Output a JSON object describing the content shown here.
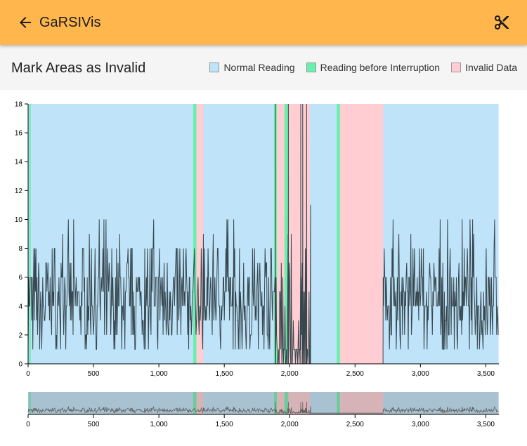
{
  "app": {
    "title": "GaRSIVis",
    "back_icon": "arrow-left-icon",
    "cut_icon": "scissors-icon",
    "accent_color": "#FFB74D"
  },
  "toolbar": {
    "title": "Mark Areas as Invalid"
  },
  "legend": [
    {
      "label": "Normal Reading",
      "color": "#BFE3F8"
    },
    {
      "label": "Reading before Interruption",
      "color": "#69F0AE"
    },
    {
      "label": "Invalid Data",
      "color": "#FFCDD2"
    }
  ],
  "chart_data": {
    "type": "line",
    "series_color": "#37474F",
    "xlim": [
      0,
      3600
    ],
    "ylim": [
      0,
      18
    ],
    "x_ticks": [
      0,
      500,
      1000,
      1500,
      2000,
      2500,
      3000,
      3500
    ],
    "y_ticks": [
      0,
      2,
      4,
      6,
      8,
      10,
      12,
      14,
      16,
      18
    ],
    "x_tick_labels": [
      "0",
      "500",
      "1,000",
      "1,500",
      "2,000",
      "2,500",
      "3,000",
      "3,500"
    ],
    "y_tick_labels": [
      "0",
      "2",
      "4",
      "6",
      "8",
      "10",
      "12",
      "14",
      "16",
      "18"
    ],
    "regions": [
      {
        "kind": "normal",
        "start": 0,
        "end": 3598
      },
      {
        "kind": "interruption",
        "start": 8,
        "end": 20
      },
      {
        "kind": "interruption",
        "start": 1262,
        "end": 1287
      },
      {
        "kind": "invalid",
        "start": 1287,
        "end": 1340
      },
      {
        "kind": "interruption",
        "start": 1880,
        "end": 1902
      },
      {
        "kind": "invalid",
        "start": 1902,
        "end": 1960
      },
      {
        "kind": "interruption",
        "start": 1960,
        "end": 1990
      },
      {
        "kind": "invalid",
        "start": 1990,
        "end": 2155
      },
      {
        "kind": "interruption",
        "start": 2360,
        "end": 2385
      },
      {
        "kind": "invalid",
        "start": 2385,
        "end": 2715
      }
    ],
    "signal_segments": [
      {
        "start": 0,
        "end": 1285,
        "level": "active"
      },
      {
        "start": 1300,
        "end": 1900,
        "level": "active"
      },
      {
        "start": 1900,
        "end": 2160,
        "level": "sparse"
      },
      {
        "start": 2160,
        "end": 2375,
        "level": "flat"
      },
      {
        "start": 2375,
        "end": 2390,
        "level": "spike"
      },
      {
        "start": 2390,
        "end": 2715,
        "level": "flat"
      },
      {
        "start": 2715,
        "end": 3598,
        "level": "active"
      }
    ],
    "spikes": [
      {
        "x": 1892,
        "y": 18
      },
      {
        "x": 1990,
        "y": 18
      },
      {
        "x": 2085,
        "y": 18
      },
      {
        "x": 2100,
        "y": 18
      },
      {
        "x": 2130,
        "y": 18
      }
    ],
    "overview": {
      "enabled": true
    }
  }
}
